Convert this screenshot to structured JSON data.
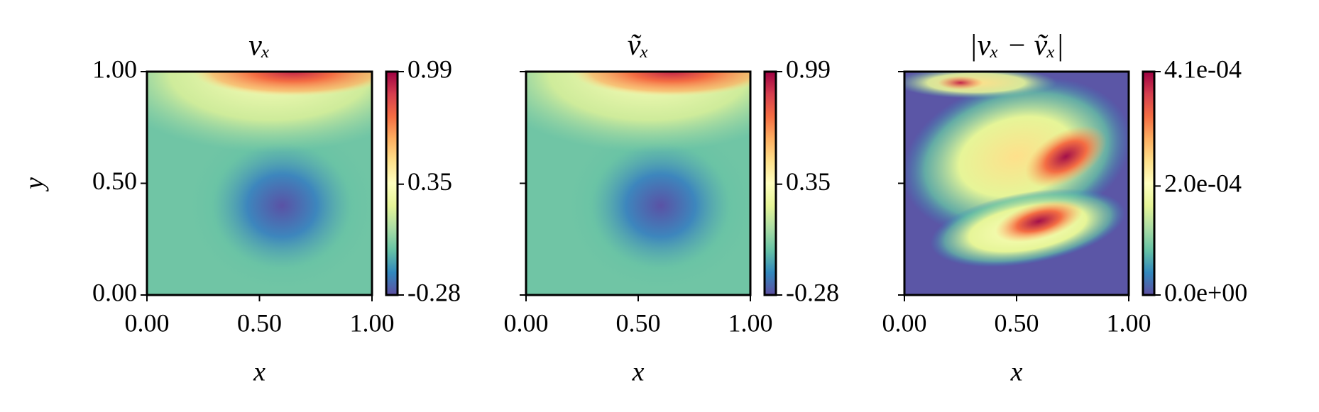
{
  "chart_data": [
    {
      "type": "heatmap",
      "title": "vₓ",
      "xlabel": "x",
      "ylabel": "y",
      "xlim": [
        0,
        1
      ],
      "ylim": [
        0,
        1
      ],
      "xticks": [
        {
          "value": 0,
          "label": "0.00"
        },
        {
          "value": 0.5,
          "label": "0.50"
        },
        {
          "value": 1,
          "label": "1.00"
        }
      ],
      "yticks": [
        {
          "value": 0,
          "label": "0.00"
        },
        {
          "value": 0.5,
          "label": "0.50"
        },
        {
          "value": 1,
          "label": "1.00"
        }
      ],
      "colormap": "Spectral_r",
      "clim": [
        -0.28,
        0.99
      ],
      "cbar_ticks": [
        -0.28,
        0.35,
        0.99
      ]
    },
    {
      "type": "heatmap",
      "title": "ṽₓ",
      "xlabel": "x",
      "xlim": [
        0,
        1
      ],
      "ylim": [
        0,
        1
      ],
      "xticks": [
        {
          "value": 0,
          "label": "0.00"
        },
        {
          "value": 0.5,
          "label": "0.50"
        },
        {
          "value": 1,
          "label": "1.00"
        }
      ],
      "colormap": "Spectral_r",
      "clim": [
        -0.28,
        0.99
      ],
      "cbar_ticks": [
        -0.28,
        0.35,
        0.99
      ]
    },
    {
      "type": "heatmap",
      "title": "|vₓ − ṽₓ|",
      "xlabel": "x",
      "xlim": [
        0,
        1
      ],
      "ylim": [
        0,
        1
      ],
      "xticks": [
        {
          "value": 0,
          "label": "0.00"
        },
        {
          "value": 0.5,
          "label": "0.50"
        },
        {
          "value": 1,
          "label": "1.00"
        }
      ],
      "colormap": "Spectral_r",
      "clim": [
        0,
        0.00041
      ],
      "cbar_ticks": [
        {
          "value": 0,
          "label": "0.0e+00"
        },
        {
          "value": 0.0002,
          "label": "2.0e-04"
        },
        {
          "value": 0.00041,
          "label": "4.1e-04"
        }
      ]
    }
  ]
}
